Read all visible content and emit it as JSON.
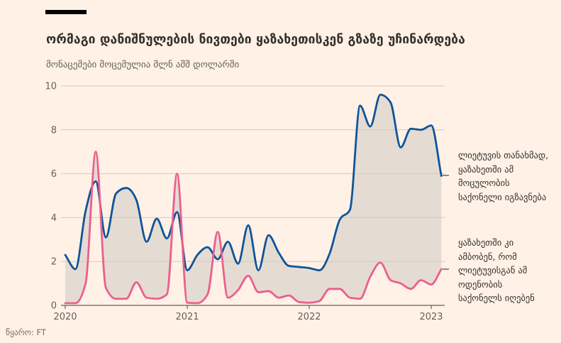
{
  "title": "ორმაგი დანიშნულების ნივთები ყაზახეთისკენ გზაზე უჩინარდება",
  "subtitle": "მონაცემები მოცემულია მლნ აშშ დოლარში",
  "source": "წყარო: FT",
  "annotations": [
    {
      "series": "blue",
      "lines": [
        "ლიეტუვის თანახმად,",
        "ყაზახეთში ამ",
        "მოცულობის",
        "საქონელი იგზავნება"
      ]
    },
    {
      "series": "pink",
      "lines": [
        "ყაზახეთში კი",
        "ამბობენ, რომ",
        "ლიეტუვისგან ამ",
        "ოდენობის",
        "საქონელს იღებენ"
      ]
    }
  ],
  "colors": {
    "background": "#FFF1E5",
    "blue_line": "#0F5499",
    "pink_line": "#EC5E8E",
    "between_fill": "#E4DCD3",
    "grid": "#D3C9BF",
    "axis": "#66605B",
    "tick_text": "#66605B",
    "kicker_bar": "#000000"
  },
  "chart_data": {
    "type": "line",
    "fill_between_series": true,
    "x": [
      "2020-01",
      "2020-02",
      "2020-03",
      "2020-04",
      "2020-05",
      "2020-06",
      "2020-07",
      "2020-08",
      "2020-09",
      "2020-10",
      "2020-11",
      "2020-12",
      "2021-01",
      "2021-02",
      "2021-03",
      "2021-04",
      "2021-05",
      "2021-06",
      "2021-07",
      "2021-08",
      "2021-09",
      "2021-10",
      "2021-11",
      "2021-12",
      "2022-01",
      "2022-02",
      "2022-03",
      "2022-04",
      "2022-05",
      "2022-06",
      "2022-07",
      "2022-08",
      "2022-09",
      "2022-10",
      "2022-11",
      "2022-12",
      "2023-01",
      "2023-02"
    ],
    "series": [
      {
        "name": "ლიეტუვის თანახმად, ყაზახეთში ამ მოცულობის საქონელი იგზავნება",
        "color": "#0F5499",
        "values": [
          2.3,
          1.65,
          4.3,
          5.65,
          3.1,
          5.1,
          5.35,
          4.8,
          2.9,
          3.95,
          3.05,
          4.25,
          1.6,
          2.3,
          2.65,
          2.1,
          2.9,
          1.9,
          3.65,
          1.6,
          3.2,
          2.4,
          1.8,
          1.75,
          1.7,
          1.6,
          2.35,
          3.9,
          4.35,
          9.1,
          8.15,
          9.6,
          9.25,
          7.2,
          8.05,
          8.0,
          8.2,
          5.9
        ]
      },
      {
        "name": "ყაზახეთში კი ამბობენ, რომ ლიეტუვისგან ამ ოდენობის საქონელს იღებენ",
        "color": "#EC5E8E",
        "values": [
          0.1,
          0.1,
          1.0,
          7.0,
          0.8,
          0.3,
          0.3,
          1.05,
          0.35,
          0.3,
          0.5,
          6.0,
          0.12,
          0.1,
          0.5,
          3.35,
          0.35,
          0.7,
          1.35,
          0.6,
          0.65,
          0.35,
          0.45,
          0.15,
          0.12,
          0.2,
          0.75,
          0.75,
          0.35,
          0.3,
          1.3,
          1.95,
          1.15,
          1.0,
          0.75,
          1.15,
          0.95,
          1.65
        ]
      }
    ],
    "xticks": [
      "2020",
      "2021",
      "2022",
      "2023"
    ],
    "yticks": [
      0,
      2,
      4,
      6,
      8,
      10
    ],
    "ylim": [
      0,
      10
    ],
    "grid": true,
    "legend_position": "right-annotations"
  }
}
